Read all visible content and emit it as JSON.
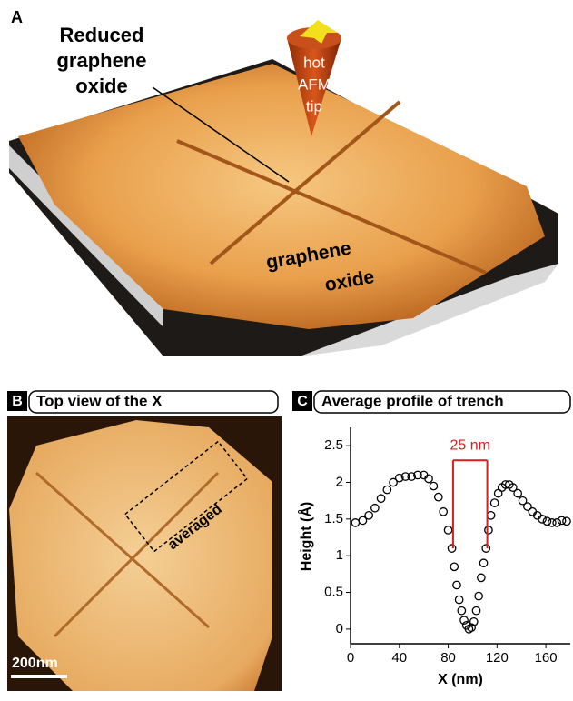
{
  "panel_a": {
    "label": "A",
    "rgo_label": [
      "Reduced",
      "graphene",
      "oxide"
    ],
    "tip_label": [
      "hot",
      "AFM",
      "tip"
    ],
    "go_label": [
      "graphene",
      "oxide"
    ]
  },
  "panel_b": {
    "label": "B",
    "title": "Top view of the X",
    "box_label": "averaged",
    "scale_bar": "200nm"
  },
  "chart_data": {
    "type": "scatter",
    "label": "C",
    "title": "Average profile of trench",
    "x_label": "X (nm)",
    "y_label": "Height (Å)",
    "x": [
      4,
      10,
      15,
      20,
      25,
      30,
      35,
      40,
      45,
      50,
      55,
      60,
      64,
      68,
      72,
      76,
      80,
      83,
      85,
      87,
      89,
      91,
      93,
      95,
      97,
      99,
      101,
      103,
      105,
      107,
      109,
      111,
      113,
      115,
      118,
      121,
      124,
      127,
      130,
      133,
      137,
      141,
      145,
      149,
      153,
      157,
      161,
      165,
      169,
      173,
      177
    ],
    "values": [
      1.45,
      1.48,
      1.55,
      1.65,
      1.78,
      1.9,
      2.0,
      2.06,
      2.08,
      2.08,
      2.1,
      2.1,
      2.05,
      1.95,
      1.8,
      1.6,
      1.35,
      1.1,
      0.85,
      0.6,
      0.4,
      0.25,
      0.12,
      0.05,
      0.0,
      0.02,
      0.1,
      0.25,
      0.45,
      0.7,
      0.9,
      1.1,
      1.35,
      1.55,
      1.72,
      1.85,
      1.93,
      1.97,
      1.97,
      1.93,
      1.85,
      1.75,
      1.67,
      1.6,
      1.55,
      1.5,
      1.47,
      1.45,
      1.45,
      1.48,
      1.47
    ],
    "color": "#000000",
    "xlim": [
      0,
      180
    ],
    "ylim": [
      -0.2,
      2.75
    ],
    "xticks": [
      0,
      40,
      80,
      120,
      160
    ],
    "yticks": [
      0,
      0.5,
      1,
      1.5,
      2,
      2.5
    ],
    "bracket": {
      "label": "25 nm",
      "x": [
        84,
        112
      ],
      "y": [
        1.1,
        2.3
      ],
      "color": "#d42020"
    }
  }
}
